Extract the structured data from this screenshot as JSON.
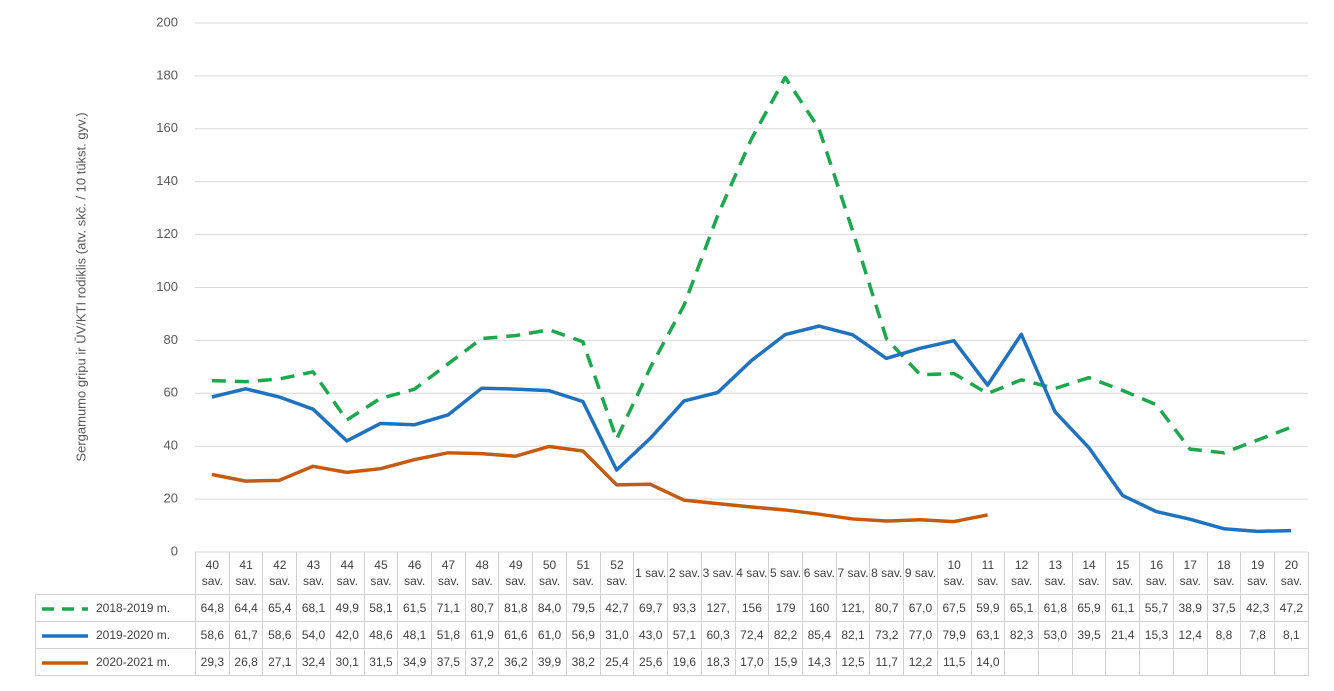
{
  "chart_data": {
    "type": "line",
    "y_label": "Sergamumo gripu ir ŪV/KTI rodiklis (atv. skč. / 10 tūkst. gyv.)",
    "categories": [
      "40 sav.",
      "41 sav.",
      "42 sav.",
      "43 sav.",
      "44 sav.",
      "45 sav.",
      "46 sav.",
      "47 sav.",
      "48 sav.",
      "49 sav.",
      "50 sav.",
      "51 sav.",
      "52 sav.",
      "1 sav.",
      "2 sav.",
      "3 sav.",
      "4 sav.",
      "5 sav.",
      "6 sav.",
      "7 sav.",
      "8 sav.",
      "9 sav.",
      "10 sav.",
      "11 sav.",
      "12 sav.",
      "13 sav.",
      "14 sav.",
      "15 sav.",
      "16 sav.",
      "17 sav.",
      "18 sav.",
      "19 sav.",
      "20 sav."
    ],
    "ylim": [
      0,
      200
    ],
    "yticks": [
      0,
      20,
      40,
      60,
      80,
      100,
      120,
      140,
      160,
      180,
      200
    ],
    "grid": true,
    "series": [
      {
        "name": "2018-2019 m.",
        "color": "#1ca84c",
        "dashed": true,
        "values": [
          64.8,
          64.4,
          65.4,
          68.1,
          49.9,
          58.1,
          61.5,
          71.1,
          80.7,
          81.8,
          84.0,
          79.5,
          42.7,
          69.7,
          93.3,
          127.3,
          156.2,
          179.4,
          160.1,
          121.4,
          80.7,
          67.0,
          67.5,
          59.9,
          65.1,
          61.8,
          65.9,
          61.1,
          55.7,
          38.9,
          37.5,
          42.3,
          47.2
        ],
        "value_labels": [
          "64,8",
          "64,4",
          "65,4",
          "68,1",
          "49,9",
          "58,1",
          "61,5",
          "71,1",
          "80,7",
          "81,8",
          "84,0",
          "79,5",
          "42,7",
          "69,7",
          "93,3",
          "127,",
          "156",
          "179",
          "160",
          "121,",
          "80,7",
          "67,0",
          "67,5",
          "59,9",
          "65,1",
          "61,8",
          "65,9",
          "61,1",
          "55,7",
          "38,9",
          "37,5",
          "42,3",
          "47,2"
        ]
      },
      {
        "name": "2019-2020 m.",
        "color": "#1f72c0",
        "dashed": false,
        "values": [
          58.6,
          61.7,
          58.6,
          54.0,
          42.0,
          48.6,
          48.1,
          51.8,
          61.9,
          61.6,
          61.0,
          56.9,
          31.0,
          43.0,
          57.1,
          60.3,
          72.4,
          82.2,
          85.4,
          82.1,
          73.2,
          77.0,
          79.9,
          63.1,
          82.3,
          53.0,
          39.5,
          21.4,
          15.3,
          12.4,
          8.8,
          7.8,
          8.1
        ],
        "value_labels": [
          "58,6",
          "61,7",
          "58,6",
          "54,0",
          "42,0",
          "48,6",
          "48,1",
          "51,8",
          "61,9",
          "61,6",
          "61,0",
          "56,9",
          "31,0",
          "43,0",
          "57,1",
          "60,3",
          "72,4",
          "82,2",
          "85,4",
          "82,1",
          "73,2",
          "77,0",
          "79,9",
          "63,1",
          "82,3",
          "53,0",
          "39,5",
          "21,4",
          "15,3",
          "12,4",
          "8,8",
          "7,8",
          "8,1"
        ]
      },
      {
        "name": "2020-2021 m.",
        "color": "#c55a11",
        "dashed": false,
        "values": [
          29.3,
          26.8,
          27.1,
          32.4,
          30.1,
          31.5,
          34.9,
          37.5,
          37.2,
          36.2,
          39.9,
          38.2,
          25.4,
          25.6,
          19.6,
          18.3,
          17.0,
          15.9,
          14.3,
          12.5,
          11.7,
          12.2,
          11.5,
          14.0,
          null,
          null,
          null,
          null,
          null,
          null,
          null,
          null,
          null
        ],
        "value_labels": [
          "29,3",
          "26,8",
          "27,1",
          "32,4",
          "30,1",
          "31,5",
          "34,9",
          "37,5",
          "37,2",
          "36,2",
          "39,9",
          "38,2",
          "25,4",
          "25,6",
          "19,6",
          "18,3",
          "17,0",
          "15,9",
          "14,3",
          "12,5",
          "11,7",
          "12,2",
          "11,5",
          "14,0",
          null,
          null,
          null,
          null,
          null,
          null,
          null,
          null,
          null
        ]
      }
    ]
  }
}
